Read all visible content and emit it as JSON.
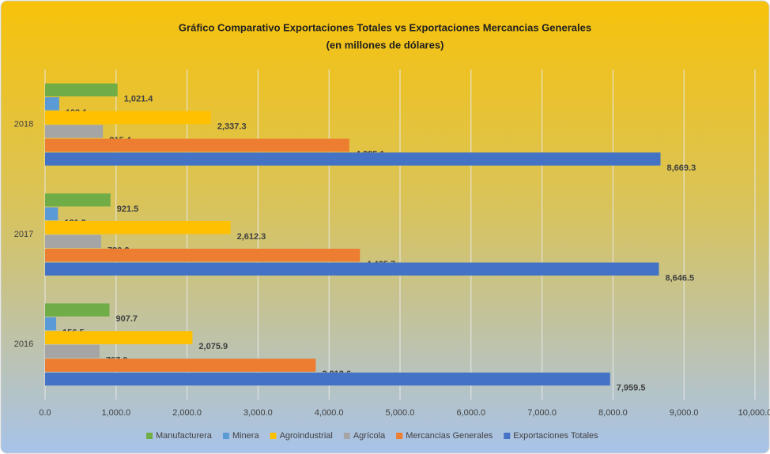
{
  "chart_data": {
    "type": "hbar",
    "title": "Gráfico Comparativo Exportaciones Totales vs Exportaciones Mercancias Generales",
    "subtitle": "(en millones de dólares)",
    "categories": [
      "2016",
      "2017",
      "2018"
    ],
    "series": [
      {
        "name": "Manufacturera",
        "color": "#70ad47",
        "values": [
          907.7,
          921.5,
          1021.4
        ],
        "value_labels": [
          "907.7",
          "921.5",
          "1,021.4"
        ]
      },
      {
        "name": "Minera",
        "color": "#5b9bd5",
        "values": [
          156.5,
          181.9,
          199.1
        ],
        "value_labels": [
          "156.5",
          "181.9",
          "199.1"
        ]
      },
      {
        "name": "Agroindustrial",
        "color": "#ffc000",
        "values": [
          2075.9,
          2612.3,
          2337.3
        ],
        "value_labels": [
          "2,075.9",
          "2,612.3",
          "2,337.3"
        ]
      },
      {
        "name": "Agrícola",
        "color": "#a5a5a5",
        "values": [
          767.0,
          790.2,
          815.4
        ],
        "value_labels": [
          "767.0",
          "790.2",
          "815.4"
        ]
      },
      {
        "name": "Mercancias Generales",
        "color": "#ed7d31",
        "values": [
          3812.6,
          4435.7,
          4285.1
        ],
        "value_labels": [
          "3,812.6",
          "4,435.7",
          "4,285.1"
        ]
      },
      {
        "name": "Exportaciones Totales",
        "color": "#4472c4",
        "values": [
          7959.5,
          8646.5,
          8669.3
        ],
        "value_labels": [
          "7,959.5",
          "8,646.5",
          "8,669.3"
        ]
      }
    ],
    "xlim": [
      0,
      10000
    ],
    "xticks": [
      {
        "value": 0,
        "label": "0.0"
      },
      {
        "value": 1000,
        "label": "1,000.0"
      },
      {
        "value": 2000,
        "label": "2,000.0"
      },
      {
        "value": 3000,
        "label": "3,000.0"
      },
      {
        "value": 4000,
        "label": "4,000.0"
      },
      {
        "value": 5000,
        "label": "5,000.0"
      },
      {
        "value": 6000,
        "label": "6,000.0"
      },
      {
        "value": 7000,
        "label": "7,000.0"
      },
      {
        "value": 8000,
        "label": "8,000.0"
      },
      {
        "value": 9000,
        "label": "9,000.0"
      },
      {
        "value": 10000,
        "label": "10,000.0"
      }
    ],
    "grid": true,
    "legend": "bottom"
  }
}
